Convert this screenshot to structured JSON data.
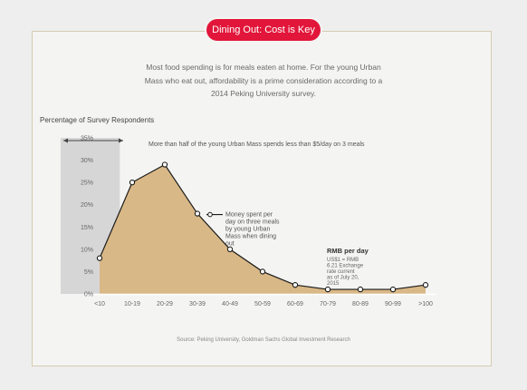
{
  "header": {
    "pill_label": "Dining Out: Cost is Key"
  },
  "intro": {
    "text": "Most food spending is for meals eaten at home. For the young Urban Mass who eat out, affordability is a prime consideration according to a 2014 Peking University survey."
  },
  "source": "Source: Peking University, Goldman Sachs Global Investment Research",
  "colors": {
    "accent": "#e2163a",
    "fill": "#d9b887",
    "line": "#1a1a1a",
    "shade": "#d6d6d6"
  },
  "chart_data": {
    "type": "area",
    "title": "Percentage of Survey Respondents",
    "categories": [
      "<10",
      "10-19",
      "20-29",
      "30-39",
      "40-49",
      "50-59",
      "60-69",
      "70-79",
      "80-89",
      "90-99",
      ">100"
    ],
    "values": [
      8,
      25,
      29,
      18,
      10,
      5,
      2,
      1,
      1,
      1,
      2
    ],
    "y_ticks": [
      "0%",
      "5%",
      "10%",
      "15%",
      "20%",
      "25%",
      "30%",
      "35%"
    ],
    "ylim": [
      0,
      35
    ],
    "series_label": "Money spent per day on three meals by young Urban Mass when dining out",
    "highlight_note": "More than half of the young Urban Mass spends less than $5/day on 3 meals",
    "xaxis_title": "RMB per day",
    "xaxis_note": "US$1 = RMB 6.21 Exchange rate current as of July 20, 2015"
  }
}
